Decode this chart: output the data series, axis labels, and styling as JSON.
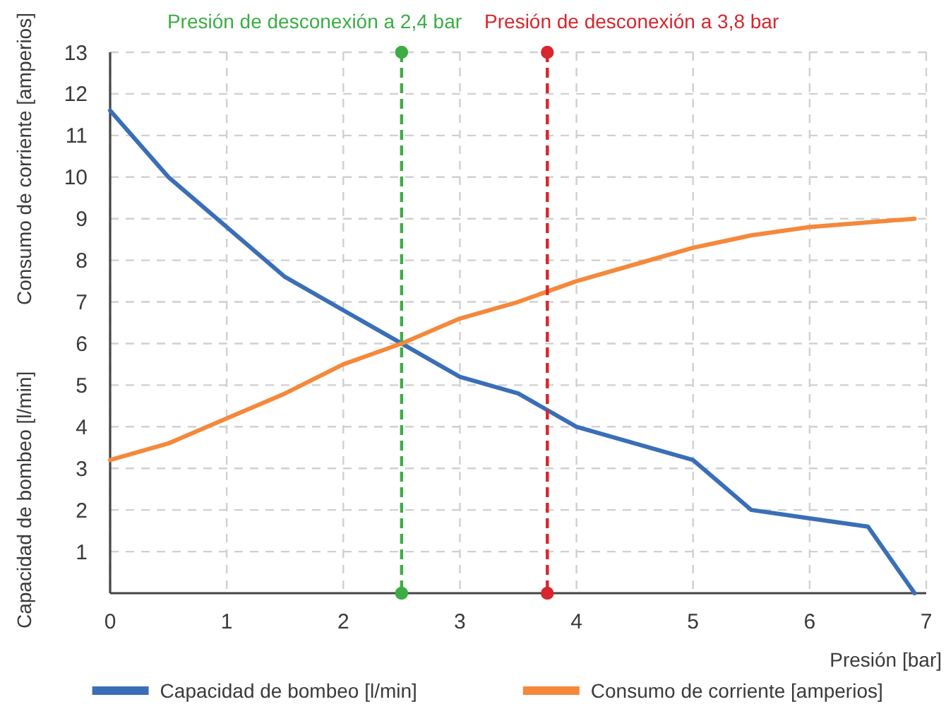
{
  "chart_data": {
    "type": "line",
    "xlabel": "Presión [bar]",
    "ylabel": "Capacidad de bombeo [l/min]",
    "y2label": "Consumo de corriente [amperios]",
    "xlim": [
      0,
      7
    ],
    "xticks": [
      0,
      1,
      2,
      3,
      4,
      5,
      6,
      7
    ],
    "ylim": [
      0,
      13
    ],
    "yticks": [
      1,
      2,
      3,
      4,
      5,
      6,
      7,
      8,
      9,
      10,
      11,
      12,
      13
    ],
    "grid": true,
    "legend": "bottom",
    "marker": "none",
    "line_style": "solid",
    "series": [
      {
        "name": "Capacidad de bombeo [l/min]",
        "color": "#3a6fb7",
        "x": [
          0,
          0.5,
          1.5,
          2.5,
          3,
          3.5,
          4,
          5,
          5.5,
          6,
          6.5,
          6.9
        ],
        "values": [
          11.6,
          10,
          7.6,
          6,
          5.2,
          4.8,
          4,
          3.2,
          2,
          1.8,
          1.6,
          0
        ]
      },
      {
        "name": "Consumo de corriente [amperios]",
        "color": "#f5883a",
        "x": [
          0,
          0.5,
          1,
          1.5,
          2,
          2.5,
          3,
          3.5,
          4,
          4.5,
          5,
          5.5,
          6,
          6.9
        ],
        "values": [
          3.2,
          3.6,
          4.2,
          4.8,
          5.5,
          6,
          6.6,
          7,
          7.5,
          7.9,
          8.3,
          8.6,
          8.8,
          9
        ]
      }
    ],
    "ref_lines": [
      {
        "axis": "x",
        "value": 2.5,
        "label": "Presión de desconexión a 2,4 bar",
        "color": "#3cad45",
        "line_style": "dashed"
      },
      {
        "axis": "x",
        "value": 3.75,
        "label": "Presión de desconexión a 3,8 bar",
        "color": "#d7262e",
        "line_style": "dashed"
      }
    ]
  }
}
